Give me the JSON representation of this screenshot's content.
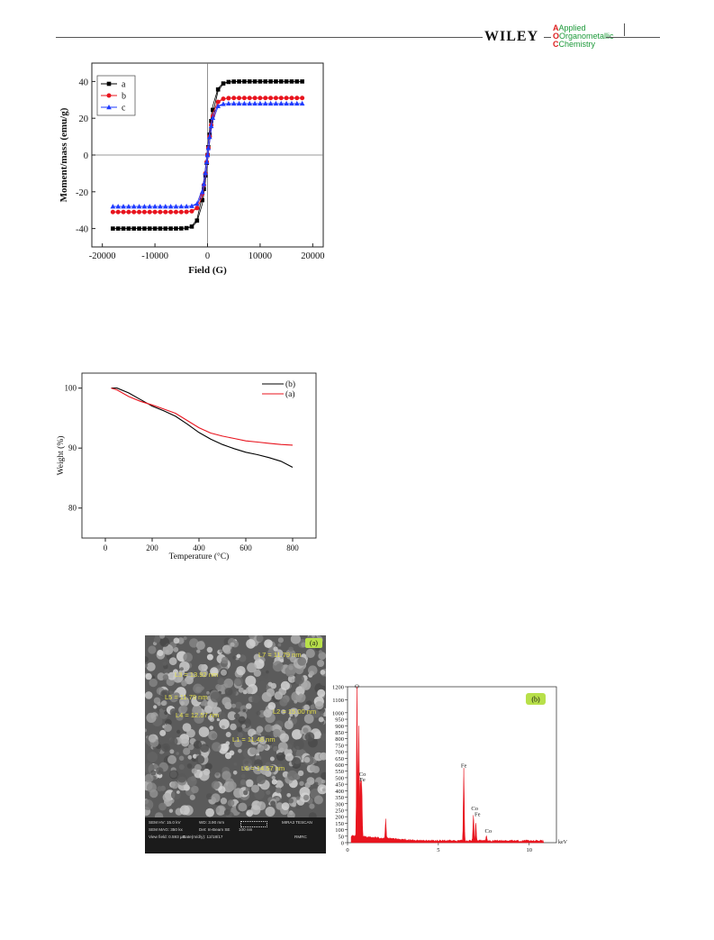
{
  "header": {
    "publisher": "WILEY",
    "journal_line1": "Applied",
    "journal_line2": "Organometallic",
    "journal_line3": "Chemistry"
  },
  "chart_data": [
    {
      "type": "scatter",
      "title": "",
      "xlabel": "Field (G)",
      "ylabel": "Moment/mass (emu/g)",
      "xlim": [
        -22000,
        22000
      ],
      "ylim": [
        -50,
        50
      ],
      "xticks": [
        -20000,
        -10000,
        0,
        10000,
        20000
      ],
      "yticks": [
        -40,
        -20,
        0,
        20,
        40
      ],
      "xtick_labels": [
        "-20000",
        "-10000",
        "0",
        "10000",
        "20000"
      ],
      "ytick_labels": [
        "-40",
        "-20",
        "0",
        "20",
        "40"
      ],
      "legend": "top-left",
      "series": [
        {
          "name": "a",
          "color": "#000000",
          "marker": "square",
          "Ms": 40,
          "H0": 1400
        },
        {
          "name": "b",
          "color": "#e8141e",
          "marker": "circle",
          "Ms": 31,
          "H0": 1200
        },
        {
          "name": "c",
          "color": "#1f3bff",
          "marker": "triangle",
          "Ms": 28,
          "H0": 1100
        }
      ]
    },
    {
      "type": "line",
      "title": "",
      "xlabel": "Temperature (°C)",
      "ylabel": "Weight (%)",
      "xlim": [
        -100,
        900
      ],
      "ylim": [
        75,
        102.5
      ],
      "xticks": [
        0,
        200,
        400,
        600,
        800
      ],
      "yticks": [
        80,
        90,
        100
      ],
      "xtick_labels": [
        "0",
        "200",
        "400",
        "600",
        "800"
      ],
      "ytick_labels": [
        "80",
        "90",
        "100"
      ],
      "legend": "top-right",
      "series": [
        {
          "name": "(b)",
          "color": "#000000",
          "x": [
            25,
            50,
            100,
            150,
            200,
            250,
            300,
            350,
            400,
            450,
            500,
            550,
            600,
            650,
            700,
            750,
            800
          ],
          "y": [
            100,
            100,
            99.2,
            98.1,
            97.0,
            96.2,
            95.3,
            94.0,
            92.6,
            91.5,
            90.6,
            89.9,
            89.3,
            88.9,
            88.4,
            87.8,
            86.8
          ]
        },
        {
          "name": "(a)",
          "color": "#e8141e",
          "x": [
            25,
            50,
            100,
            150,
            200,
            250,
            300,
            350,
            400,
            450,
            500,
            550,
            600,
            650,
            700,
            750,
            800
          ],
          "y": [
            100,
            99.7,
            98.6,
            97.8,
            97.2,
            96.5,
            95.8,
            94.6,
            93.4,
            92.5,
            92.0,
            91.6,
            91.2,
            91.0,
            90.8,
            90.6,
            90.5
          ]
        }
      ]
    },
    {
      "type": "bar",
      "title": "",
      "xlabel": "keV",
      "ylabel": "",
      "xlim": [
        0,
        11.5
      ],
      "ylim": [
        0,
        1200
      ],
      "xticks": [
        0,
        5,
        10
      ],
      "yticks": [
        0,
        50,
        100,
        150,
        200,
        250,
        300,
        350,
        400,
        450,
        500,
        550,
        600,
        650,
        700,
        750,
        800,
        850,
        900,
        950,
        1000,
        1100,
        1200
      ],
      "xtick_labels": [
        "0",
        "5",
        "10"
      ],
      "ytick_labels": [
        "0",
        "50",
        "100",
        "150",
        "200",
        "250",
        "300",
        "350",
        "400",
        "450",
        "500",
        "550",
        "600",
        "650",
        "700",
        "750",
        "800",
        "850",
        "900",
        "950",
        "1000",
        "1100",
        "1200"
      ],
      "panel_tag": "(b)",
      "color": "#e8141e",
      "peaks": [
        {
          "keV": 0.52,
          "counts": 1180
        },
        {
          "keV": 0.62,
          "counts": 860
        },
        {
          "keV": 0.71,
          "counts": 460
        },
        {
          "keV": 0.78,
          "counts": 420
        },
        {
          "keV": 2.1,
          "counts": 150
        },
        {
          "keV": 6.4,
          "counts": 560
        },
        {
          "keV": 6.93,
          "counts": 200
        },
        {
          "keV": 7.06,
          "counts": 150
        },
        {
          "keV": 7.65,
          "counts": 40
        }
      ],
      "annotations": [
        {
          "text": "O",
          "keV": 0.52,
          "counts": 1190
        },
        {
          "text": "Co",
          "keV": 0.82,
          "counts": 515
        },
        {
          "text": "Fe",
          "keV": 0.82,
          "counts": 470
        },
        {
          "text": "Fe",
          "keV": 6.4,
          "counts": 580
        },
        {
          "text": "Co",
          "keV": 7.0,
          "counts": 250
        },
        {
          "text": "Fe",
          "keV": 7.15,
          "counts": 205
        },
        {
          "text": "Co",
          "keV": 7.75,
          "counts": 75
        }
      ]
    }
  ],
  "sem": {
    "panel_tag": "(a)",
    "labels": [
      {
        "text": "L7 = 11.79 nm"
      },
      {
        "text": "L3 = 13.92 nm"
      },
      {
        "text": "L5 = 11.79 nm"
      },
      {
        "text": "L2 = 15.00 nm"
      },
      {
        "text": "L4 = 12.57 nm"
      },
      {
        "text": "L1 = 11.48 nm"
      },
      {
        "text": "L6 = 14.57 nm"
      }
    ],
    "info_bar": {
      "hv": "SEM HV: 15.0 kV",
      "wd": "WD: 3.90 mm",
      "brand": "MIRA3 TESCAN",
      "mag": "SEM MAG: 350 kx",
      "det": "Det: In-Beam SE",
      "scale": "100 nm",
      "view": "View field: 0.593 μm",
      "date": "Date(m/d/y): 12/18/17",
      "lab": "RMRC"
    }
  }
}
